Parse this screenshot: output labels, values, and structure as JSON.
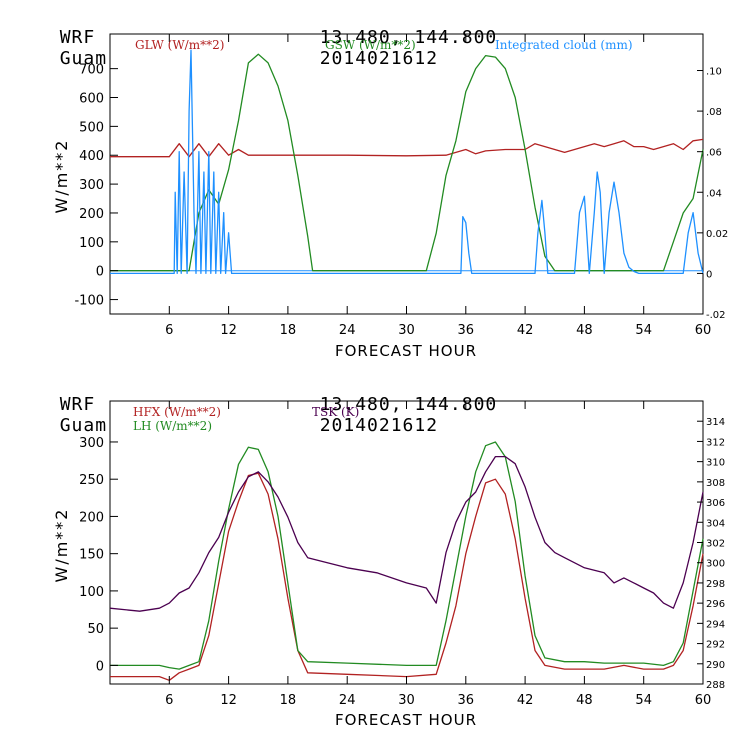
{
  "panels": [
    {
      "header": {
        "model": "WRF",
        "site": "Guam",
        "coords": "13.480, 144.800",
        "init": "2014021612"
      },
      "xlabel": "FORECAST HOUR",
      "ylabel": "W/m**2",
      "x_ticks": [
        "6",
        "12",
        "18",
        "24",
        "30",
        "36",
        "42",
        "48",
        "54",
        "60"
      ],
      "y_ticks": [
        "-100",
        "0",
        "100",
        "200",
        "300",
        "400",
        "500",
        "600",
        "700"
      ],
      "right_ticks": [
        "-.02",
        "0",
        "0.02",
        ".04",
        ".06",
        ".08",
        ".10"
      ],
      "legend": [
        {
          "label": "GLW (W/m**2)",
          "color": "#b22222"
        },
        {
          "label": "GSW (W/m**2)",
          "color": "#228b22"
        },
        {
          "label": "Integrated cloud (mm)",
          "color": "#1e90ff"
        }
      ]
    },
    {
      "header": {
        "model": "WRF",
        "site": "Guam",
        "coords": "13.480, 144.800",
        "init": "2014021612"
      },
      "xlabel": "FORECAST HOUR",
      "ylabel": "W/m**2",
      "x_ticks": [
        "6",
        "12",
        "18",
        "24",
        "30",
        "36",
        "42",
        "48",
        "54",
        "60"
      ],
      "y_ticks": [
        "0",
        "50",
        "100",
        "150",
        "200",
        "250",
        "300"
      ],
      "right_ticks": [
        "288",
        "290",
        "292",
        "294",
        "296",
        "298",
        "300",
        "302",
        "304",
        "306",
        "308",
        "310",
        "312",
        "314"
      ],
      "legend": [
        {
          "label": "HFX (W/m**2)",
          "color": "#b22222"
        },
        {
          "label": "LH  (W/m**2)",
          "color": "#228b22"
        },
        {
          "label": "TSK (K)",
          "color": "#4b0050"
        }
      ]
    }
  ],
  "chart_data": [
    {
      "type": "line",
      "title": "WRF Guam 13.480, 144.800 2014021612",
      "xlabel": "FORECAST HOUR",
      "ylabel": "W/m**2",
      "xlim": [
        0,
        60
      ],
      "ylim": [
        -150,
        820
      ],
      "y2lim": [
        -0.02,
        0.118
      ],
      "series": [
        {
          "name": "GLW (W/m**2)",
          "axis": "left",
          "color": "#b22222",
          "x": [
            0,
            6,
            7,
            8,
            9,
            10,
            11,
            12,
            13,
            14,
            18,
            24,
            30,
            34,
            36,
            37,
            38,
            40,
            41,
            42,
            43,
            44,
            46,
            48,
            49,
            50,
            51,
            52,
            53,
            54,
            55,
            56,
            57,
            58,
            59,
            60
          ],
          "y": [
            395,
            395,
            440,
            395,
            440,
            395,
            440,
            400,
            420,
            400,
            400,
            400,
            398,
            400,
            420,
            405,
            415,
            420,
            420,
            420,
            440,
            430,
            410,
            430,
            440,
            430,
            440,
            450,
            430,
            430,
            420,
            430,
            440,
            420,
            450,
            455
          ]
        },
        {
          "name": "GSW (W/m**2)",
          "axis": "left",
          "color": "#228b22",
          "x": [
            0,
            8,
            9,
            10,
            11,
            12,
            13,
            14,
            15,
            16,
            17,
            18,
            19,
            20,
            20.5,
            32,
            33,
            34,
            35,
            36,
            37,
            38,
            39,
            40,
            41,
            42,
            43,
            44,
            45,
            56,
            57,
            58,
            59,
            60
          ],
          "y": [
            0,
            0,
            200,
            280,
            230,
            350,
            520,
            720,
            750,
            720,
            640,
            520,
            330,
            120,
            0,
            0,
            130,
            330,
            450,
            620,
            700,
            745,
            740,
            700,
            600,
            420,
            220,
            50,
            0,
            0,
            100,
            200,
            250,
            420
          ]
        },
        {
          "name": "Integrated cloud (mm)",
          "axis": "right",
          "color": "#1e90ff",
          "x": [
            0,
            6.5,
            6.6,
            6.8,
            7,
            7.2,
            7.5,
            7.8,
            8,
            8.2,
            8.5,
            8.7,
            9,
            9.2,
            9.5,
            9.7,
            10,
            10.2,
            10.5,
            10.7,
            11,
            11.2,
            11.5,
            11.7,
            12,
            12.3,
            35.5,
            35.7,
            36,
            36.3,
            36.6,
            37,
            43,
            43.3,
            43.7,
            44,
            44.3,
            47,
            47.5,
            48,
            48.5,
            49,
            49.3,
            49.6,
            50,
            50.5,
            51,
            51.5,
            52,
            52.5,
            53,
            53.5,
            58,
            58.5,
            59,
            59.5,
            60
          ],
          "y": [
            0,
            0,
            0.04,
            0,
            0.06,
            0,
            0.05,
            0,
            0.08,
            0.11,
            0.03,
            0,
            0.06,
            0,
            0.05,
            0,
            0.06,
            0,
            0.05,
            0,
            0.04,
            0,
            0.03,
            0,
            0.02,
            0,
            0,
            0.028,
            0.025,
            0.01,
            0,
            0,
            0,
            0.02,
            0.036,
            0.02,
            0,
            0,
            0.03,
            0.038,
            0,
            0.03,
            0.05,
            0.04,
            0,
            0.03,
            0.045,
            0.03,
            0.01,
            0.003,
            0.001,
            0,
            0,
            0.02,
            0.03,
            0.01,
            0
          ]
        }
      ]
    },
    {
      "type": "line",
      "title": "WRF Guam 13.480, 144.800 2014021612",
      "xlabel": "FORECAST HOUR",
      "ylabel": "W/m**2",
      "xlim": [
        0,
        60
      ],
      "ylim": [
        -25,
        355
      ],
      "y2lim": [
        288,
        316
      ],
      "series": [
        {
          "name": "HFX (W/m**2)",
          "axis": "left",
          "color": "#b22222",
          "x": [
            0,
            5,
            6,
            7,
            8,
            9,
            10,
            11,
            12,
            13,
            14,
            15,
            16,
            17,
            18,
            19,
            20,
            24,
            30,
            33,
            34,
            35,
            36,
            37,
            38,
            39,
            40,
            41,
            42,
            43,
            44,
            46,
            48,
            50,
            52,
            54,
            56,
            57,
            58,
            59,
            60
          ],
          "y": [
            -15,
            -15,
            -20,
            -10,
            -5,
            0,
            40,
            110,
            180,
            220,
            255,
            258,
            230,
            170,
            90,
            20,
            -10,
            -12,
            -15,
            -12,
            30,
            80,
            150,
            200,
            245,
            250,
            230,
            170,
            90,
            20,
            0,
            -5,
            -5,
            -5,
            0,
            -5,
            -5,
            0,
            20,
            80,
            150
          ]
        },
        {
          "name": "LH  (W/m**2)",
          "axis": "left",
          "color": "#228b22",
          "x": [
            0,
            5,
            6,
            7,
            8,
            9,
            10,
            11,
            12,
            13,
            14,
            15,
            16,
            17,
            18,
            19,
            20,
            24,
            30,
            33,
            34,
            35,
            36,
            37,
            38,
            39,
            40,
            41,
            42,
            43,
            44,
            46,
            48,
            50,
            52,
            54,
            56,
            57,
            58,
            59,
            60
          ],
          "y": [
            0,
            0,
            -3,
            -5,
            0,
            5,
            60,
            140,
            210,
            270,
            293,
            290,
            260,
            200,
            110,
            20,
            5,
            3,
            0,
            0,
            60,
            130,
            200,
            260,
            295,
            300,
            280,
            220,
            120,
            40,
            10,
            5,
            5,
            3,
            3,
            3,
            0,
            5,
            30,
            100,
            170
          ]
        },
        {
          "name": "TSK (K)",
          "axis": "right",
          "color": "#4b0050",
          "x": [
            0,
            3,
            5,
            6,
            7,
            8,
            9,
            10,
            11,
            12,
            13,
            14,
            15,
            16,
            17,
            18,
            19,
            20,
            22,
            24,
            27,
            30,
            32,
            33,
            34,
            35,
            36,
            37,
            38,
            39,
            40,
            41,
            42,
            43,
            44,
            45,
            46,
            48,
            50,
            51,
            52,
            53,
            54,
            55,
            56,
            57,
            58,
            59,
            60
          ],
          "y": [
            295.5,
            295.2,
            295.5,
            296,
            297,
            297.5,
            299,
            301,
            302.5,
            305,
            307,
            308.5,
            309,
            308,
            306.5,
            304.5,
            302,
            300.5,
            300,
            299.5,
            299,
            298,
            297.5,
            296,
            301,
            304,
            306,
            307,
            309,
            310.5,
            310.5,
            309.8,
            307.5,
            304.5,
            302,
            301,
            300.5,
            299.5,
            299,
            298,
            298.5,
            298,
            297.5,
            297,
            296,
            295.5,
            298,
            302,
            307
          ]
        }
      ]
    }
  ]
}
